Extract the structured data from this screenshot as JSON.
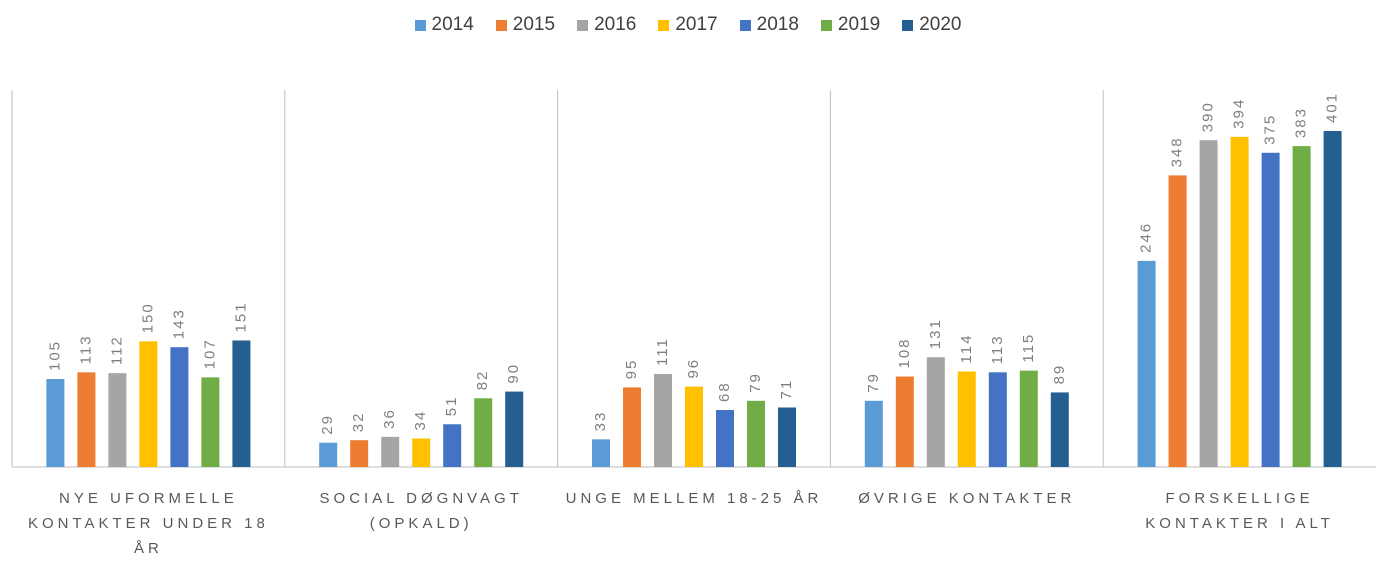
{
  "chart_data": {
    "type": "bar",
    "categories": [
      "NYE UFORMELLE KONTAKTER UNDER 18 ÅR",
      "SOCIAL DØGNVAGT (OPKALD)",
      "UNGE MELLEM 18-25 ÅR",
      "ØVRIGE KONTAKTER",
      "FORSKELLIGE KONTAKTER I ALT"
    ],
    "series": [
      {
        "name": "2014",
        "color": "#5b9bd5",
        "values": [
          105,
          29,
          33,
          79,
          246
        ]
      },
      {
        "name": "2015",
        "color": "#ed7d31",
        "values": [
          113,
          32,
          95,
          108,
          348
        ]
      },
      {
        "name": "2016",
        "color": "#a5a5a5",
        "values": [
          112,
          36,
          111,
          131,
          390
        ]
      },
      {
        "name": "2017",
        "color": "#ffc000",
        "values": [
          150,
          34,
          96,
          114,
          394
        ]
      },
      {
        "name": "2018",
        "color": "#4472c4",
        "values": [
          143,
          51,
          68,
          113,
          375
        ]
      },
      {
        "name": "2019",
        "color": "#70ad47",
        "values": [
          107,
          82,
          79,
          115,
          383
        ]
      },
      {
        "name": "2020",
        "color": "#255e91",
        "values": [
          151,
          90,
          71,
          89,
          401
        ]
      }
    ],
    "legend": "top"
  }
}
